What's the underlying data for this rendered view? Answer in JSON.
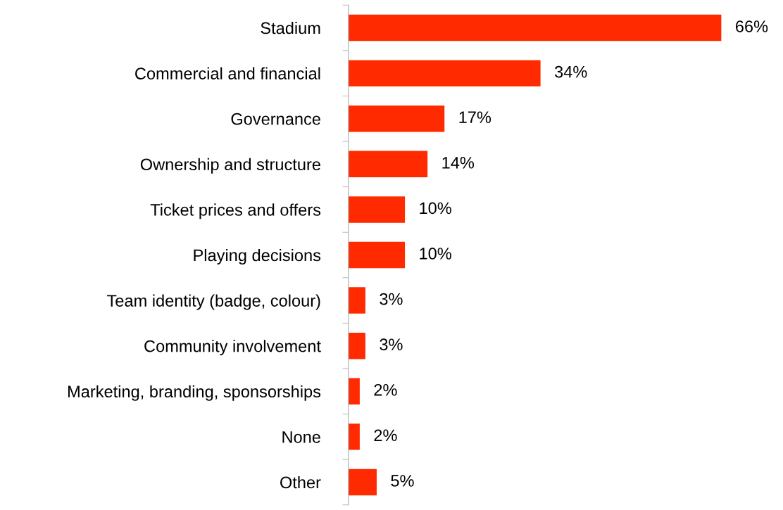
{
  "chart_data": {
    "type": "bar",
    "orientation": "horizontal",
    "categories": [
      "Stadium",
      "Commercial and financial",
      "Governance",
      "Ownership and structure",
      "Ticket prices and offers",
      "Playing decisions",
      "Team identity (badge, colour)",
      "Community involvement",
      "Marketing, branding, sponsorships",
      "None",
      "Other"
    ],
    "values": [
      66,
      34,
      17,
      14,
      10,
      10,
      3,
      3,
      2,
      2,
      5
    ],
    "value_labels": [
      "66%",
      "34%",
      "17%",
      "14%",
      "10%",
      "10%",
      "3%",
      "3%",
      "2%",
      "2%",
      "5%"
    ],
    "color": "#ff2a00",
    "grid": false,
    "legend": false
  }
}
